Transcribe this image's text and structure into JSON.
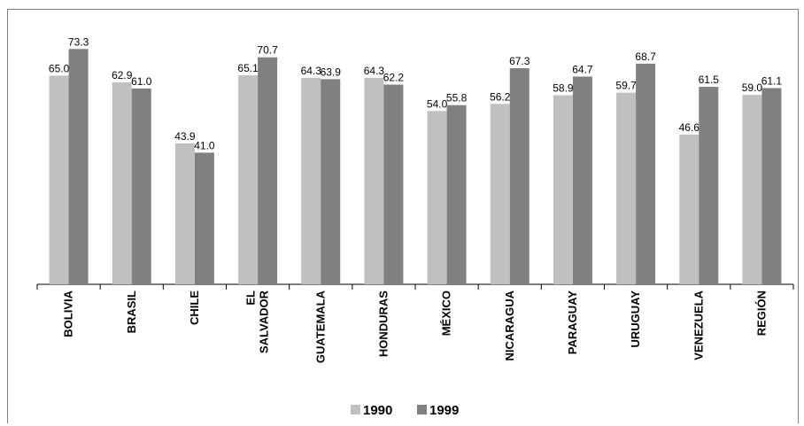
{
  "chart_data": {
    "type": "bar",
    "categories": [
      [
        "BOLIVIA"
      ],
      [
        "BRASIL"
      ],
      [
        "CHILE"
      ],
      [
        "EL",
        "SALVADOR"
      ],
      [
        "GUATEMALA"
      ],
      [
        "HONDURAS"
      ],
      [
        "MÉXICO"
      ],
      [
        "NICARAGUA"
      ],
      [
        "PARAGUAY"
      ],
      [
        "URUGUAY"
      ],
      [
        "VENEZUELA"
      ],
      [
        "REGIÓN"
      ]
    ],
    "series": [
      {
        "name": "1990",
        "color": "#c0c0c0",
        "values": [
          65.0,
          62.9,
          43.9,
          65.1,
          64.3,
          64.3,
          54.0,
          56.2,
          58.9,
          59.7,
          46.6,
          59.0
        ]
      },
      {
        "name": "1999",
        "color": "#808080",
        "values": [
          73.3,
          61.0,
          41.0,
          70.7,
          63.9,
          62.2,
          55.8,
          67.3,
          64.7,
          68.7,
          61.5,
          61.1
        ]
      }
    ],
    "value_labels_1990": [
      "65.0",
      "62.9",
      "43.9",
      "65.1",
      "64.3",
      "64.3",
      "54.0",
      "56.2",
      "58.9",
      "59.7",
      "46.6",
      "59.0"
    ],
    "value_labels_1999": [
      "73.3",
      "61.0",
      "41.0",
      "70.7",
      "63.9",
      "62.2",
      "55.8",
      "67.3",
      "64.7",
      "68.7",
      "61.5",
      "61.1"
    ],
    "ylim": [
      0,
      80
    ],
    "y_axis_visible": false,
    "grid": false,
    "legend_position": "bottom",
    "title": "",
    "xlabel": "",
    "ylabel": ""
  }
}
